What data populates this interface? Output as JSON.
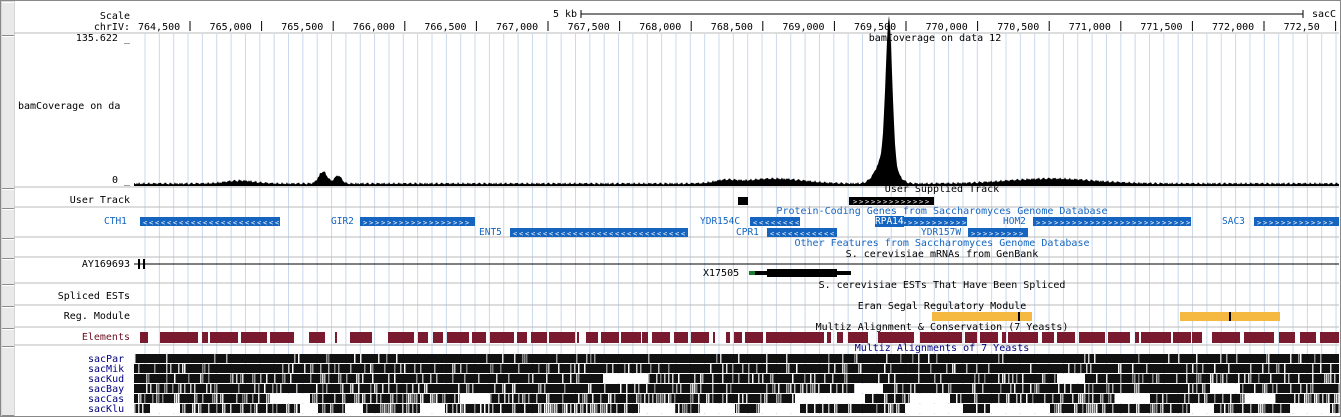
{
  "ruler": {
    "scale_label": "Scale",
    "chrom_label": "chrIV:",
    "scale_bar_label": "5 kb",
    "assembly_label": "sacC",
    "positions": [
      "764,500",
      "765,000",
      "765,500",
      "766,000",
      "766,500",
      "767,000",
      "767,500",
      "768,000",
      "768,500",
      "769,000",
      "769,500",
      "770,000",
      "770,500",
      "771,000",
      "771,500",
      "772,000",
      "772,50"
    ]
  },
  "tracks": {
    "bam": {
      "label": "bamCoverage on da",
      "title": "bamCoverage on data 12",
      "max": "135.622 _",
      "min": "0 _"
    },
    "user": {
      "label": "User Track",
      "title": "User Supplied Track"
    },
    "genes": {
      "title": "Protein-Coding Genes from Saccharomyces Genome Database",
      "items": [
        {
          "name": "CTH1",
          "strand": "-"
        },
        {
          "name": "GIR2",
          "strand": "+"
        },
        {
          "name": "ENT5",
          "strand": "-"
        },
        {
          "name": "YDR154C",
          "strand": "-"
        },
        {
          "name": "CPR1",
          "strand": "-"
        },
        {
          "name": "RPA14",
          "strand": "+"
        },
        {
          "name": "YDR157W",
          "strand": "+"
        },
        {
          "name": "HOM2",
          "strand": "+"
        },
        {
          "name": "SAC3",
          "strand": "+"
        }
      ]
    },
    "other_features": {
      "title": "Other Features from Saccharomyces Genome Database"
    },
    "mrna": {
      "label": "AY169693",
      "title": "S. cerevisiae mRNAs from GenBank",
      "item": "X17505"
    },
    "ests": {
      "label": "Spliced ESTs",
      "title": "S. cerevisiae ESTs That Have Been Spliced"
    },
    "regmod": {
      "label": "Reg. Module",
      "title": "Eran Segal Regulatory Module"
    },
    "elements": {
      "label": "Elements",
      "title": "Multiz Alignment & Conservation (7 Yeasts)"
    },
    "multiz": {
      "title": "Multiz Alignments of 7 Yeasts",
      "species": [
        "sacPar",
        "sacMik",
        "sacKud",
        "sacBay",
        "sacCas",
        "sacKlu"
      ]
    }
  },
  "colors": {
    "gene": "#1565c0",
    "element": "#7a1a2e",
    "module": "#f5b942",
    "label_gene": "#1565c0"
  }
}
